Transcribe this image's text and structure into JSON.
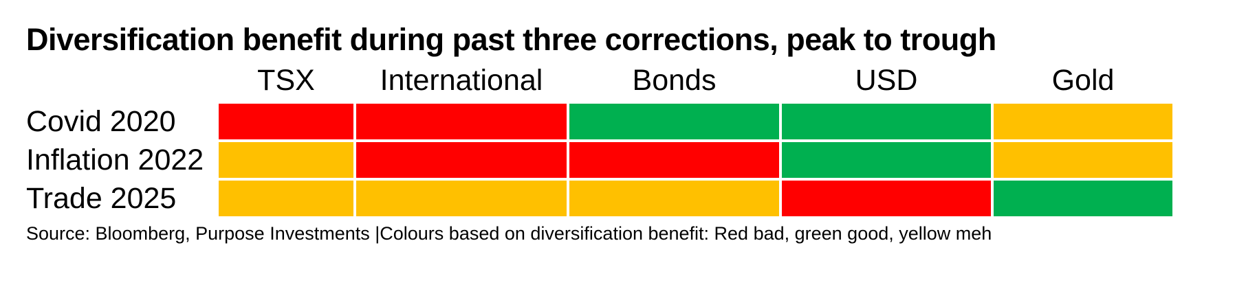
{
  "title": "Diversification benefit during past three corrections, peak to trough",
  "source_note": "Source: Bloomberg, Purpose Investments |Colours based on diversification benefit: Red bad, green good, yellow meh",
  "colors": {
    "bad": "#FF0000",
    "good": "#00B050",
    "meh": "#FFC000",
    "background": "#FFFFFF",
    "text": "#000000"
  },
  "chart_data": {
    "type": "heatmap",
    "title": "Diversification benefit during past three corrections, peak to trough",
    "columns": [
      "TSX",
      "International",
      "Bonds",
      "USD",
      "Gold"
    ],
    "rows": [
      "Covid 2020",
      "Inflation 2022",
      "Trade 2025"
    ],
    "values": [
      [
        "bad",
        "bad",
        "good",
        "good",
        "meh"
      ],
      [
        "meh",
        "bad",
        "bad",
        "good",
        "meh"
      ],
      [
        "meh",
        "meh",
        "meh",
        "bad",
        "good"
      ]
    ],
    "value_legend": "Red bad, green good, yellow meh",
    "legend_position": "bottom-caption",
    "grid": "white 4px separators between cells"
  }
}
